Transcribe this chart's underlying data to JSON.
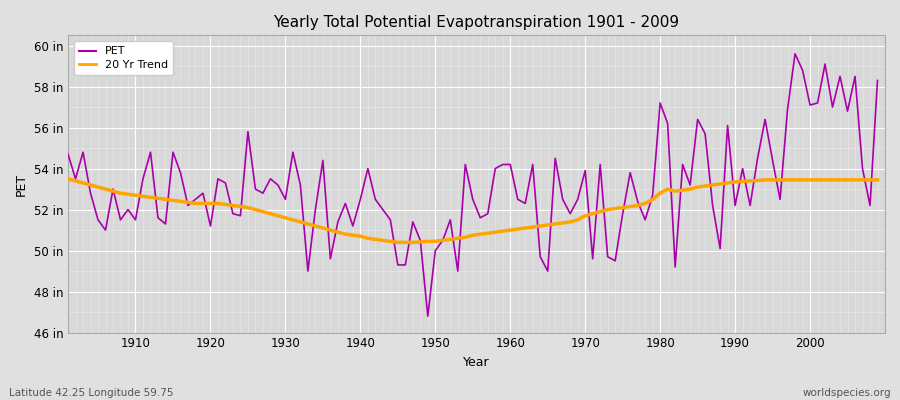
{
  "title": "Yearly Total Potential Evapotranspiration 1901 - 2009",
  "xlabel": "Year",
  "ylabel": "PET",
  "bottom_left_label": "Latitude 42.25 Longitude 59.75",
  "bottom_right_label": "worldspecies.org",
  "pet_color": "#aa00aa",
  "trend_color": "#FFA500",
  "background_color": "#E0E0E0",
  "plot_bg_color": "#D8D8D8",
  "ylim": [
    46,
    60.5
  ],
  "yticks": [
    46,
    48,
    50,
    52,
    54,
    56,
    58,
    60
  ],
  "ytick_labels": [
    "46 in",
    "48 in",
    "50 in",
    "52 in",
    "54 in",
    "56 in",
    "58 in",
    "60 in"
  ],
  "years": [
    1901,
    1902,
    1903,
    1904,
    1905,
    1906,
    1907,
    1908,
    1909,
    1910,
    1911,
    1912,
    1913,
    1914,
    1915,
    1916,
    1917,
    1918,
    1919,
    1920,
    1921,
    1922,
    1923,
    1924,
    1925,
    1926,
    1927,
    1928,
    1929,
    1930,
    1931,
    1932,
    1933,
    1934,
    1935,
    1936,
    1937,
    1938,
    1939,
    1940,
    1941,
    1942,
    1943,
    1944,
    1945,
    1946,
    1947,
    1948,
    1949,
    1950,
    1951,
    1952,
    1953,
    1954,
    1955,
    1956,
    1957,
    1958,
    1959,
    1960,
    1961,
    1962,
    1963,
    1964,
    1965,
    1966,
    1967,
    1968,
    1969,
    1970,
    1971,
    1972,
    1973,
    1974,
    1975,
    1976,
    1977,
    1978,
    1979,
    1980,
    1981,
    1982,
    1983,
    1984,
    1985,
    1986,
    1987,
    1988,
    1989,
    1990,
    1991,
    1992,
    1993,
    1994,
    1995,
    1996,
    1997,
    1998,
    1999,
    2000,
    2001,
    2002,
    2003,
    2004,
    2005,
    2006,
    2007,
    2008,
    2009
  ],
  "pet_values": [
    54.7,
    53.5,
    54.8,
    52.8,
    51.5,
    51.0,
    53.0,
    51.5,
    52.0,
    51.5,
    53.5,
    54.8,
    51.6,
    51.3,
    54.8,
    53.8,
    52.2,
    52.5,
    52.8,
    51.2,
    53.5,
    53.3,
    51.8,
    51.7,
    55.8,
    53.0,
    52.8,
    53.5,
    53.2,
    52.5,
    54.8,
    53.2,
    49.0,
    52.0,
    54.4,
    49.6,
    51.4,
    52.3,
    51.2,
    52.5,
    54.0,
    52.5,
    52.0,
    51.5,
    49.3,
    49.3,
    51.4,
    50.5,
    46.8,
    50.0,
    50.5,
    51.5,
    49.0,
    54.2,
    52.5,
    51.6,
    51.8,
    54.0,
    54.2,
    54.2,
    52.5,
    52.3,
    54.2,
    49.7,
    49.0,
    54.5,
    52.5,
    51.8,
    52.5,
    53.9,
    49.6,
    54.2,
    49.7,
    49.5,
    51.8,
    53.8,
    52.4,
    51.5,
    52.7,
    57.2,
    56.2,
    49.2,
    54.2,
    53.2,
    56.4,
    55.7,
    52.2,
    50.1,
    56.1,
    52.2,
    54.0,
    52.2,
    54.5,
    56.4,
    54.4,
    52.5,
    56.9,
    59.6,
    58.8,
    57.1,
    57.2,
    59.1,
    57.0,
    58.5,
    56.8,
    58.5,
    54.0,
    52.2,
    58.3
  ],
  "trend_years": [
    1901,
    1902,
    1903,
    1904,
    1905,
    1906,
    1907,
    1908,
    1909,
    1910,
    1911,
    1912,
    1913,
    1914,
    1915,
    1916,
    1917,
    1918,
    1919,
    1920,
    1921,
    1922,
    1923,
    1924,
    1925,
    1926,
    1927,
    1928,
    1929,
    1930,
    1931,
    1932,
    1933,
    1934,
    1935,
    1936,
    1937,
    1938,
    1939,
    1940,
    1941,
    1942,
    1943,
    1944,
    1945,
    1946,
    1947,
    1948,
    1949,
    1950,
    1951,
    1952,
    1953,
    1954,
    1955,
    1956,
    1957,
    1958,
    1959,
    1960,
    1961,
    1962,
    1963,
    1964,
    1965,
    1966,
    1967,
    1968,
    1969,
    1970,
    1971,
    1972,
    1973,
    1974,
    1975,
    1976,
    1977,
    1978,
    1979,
    1980,
    1981,
    1982,
    1983,
    1984,
    1985,
    1986,
    1987,
    1988,
    1989,
    1990,
    1991,
    1992,
    1993,
    1994,
    1995,
    1996,
    1997,
    1998,
    1999,
    2000,
    2001,
    2002,
    2003,
    2004,
    2005,
    2006,
    2007,
    2008,
    2009
  ],
  "trend_values": [
    53.5,
    53.4,
    53.3,
    53.2,
    53.1,
    53.0,
    52.9,
    52.8,
    52.75,
    52.7,
    52.65,
    52.6,
    52.55,
    52.5,
    52.45,
    52.4,
    52.35,
    52.3,
    52.3,
    52.3,
    52.3,
    52.25,
    52.2,
    52.15,
    52.1,
    52.0,
    51.9,
    51.8,
    51.7,
    51.6,
    51.5,
    51.4,
    51.3,
    51.2,
    51.1,
    51.0,
    50.9,
    50.8,
    50.75,
    50.7,
    50.6,
    50.55,
    50.5,
    50.45,
    50.4,
    50.4,
    50.4,
    50.42,
    50.45,
    50.45,
    50.5,
    50.55,
    50.6,
    50.65,
    50.75,
    50.8,
    50.85,
    50.9,
    50.95,
    51.0,
    51.05,
    51.1,
    51.15,
    51.2,
    51.25,
    51.3,
    51.35,
    51.4,
    51.5,
    51.7,
    51.8,
    51.9,
    52.0,
    52.05,
    52.1,
    52.15,
    52.2,
    52.3,
    52.5,
    52.8,
    53.0,
    52.9,
    52.95,
    53.0,
    53.1,
    53.15,
    53.2,
    53.25,
    53.3,
    53.35,
    53.38,
    53.4,
    53.42,
    53.45,
    53.45,
    53.45,
    53.45,
    53.45,
    53.45,
    53.45,
    53.45,
    53.45,
    53.45,
    53.45,
    53.45,
    53.45,
    53.45,
    53.45,
    53.45
  ]
}
